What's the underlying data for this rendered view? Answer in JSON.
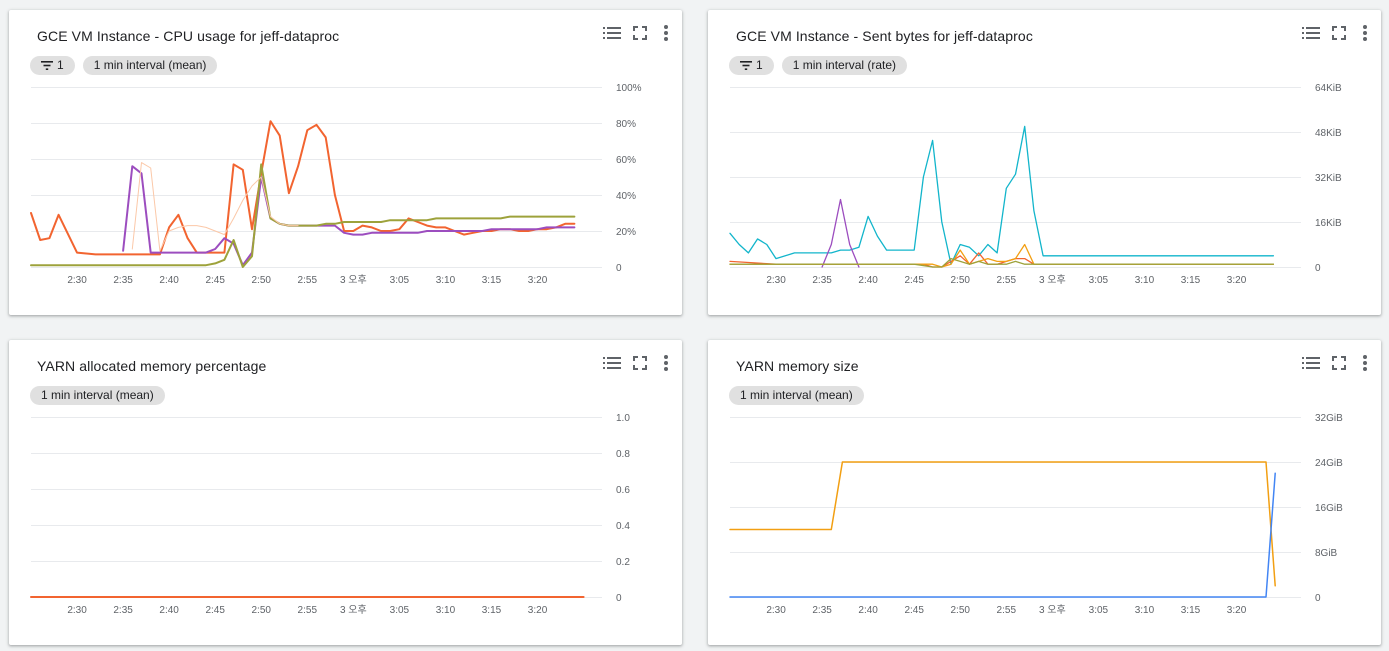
{
  "panels": [
    {
      "title": "GCE VM Instance - CPU usage for jeff-dataproc",
      "filter_count": "1",
      "interval": "1 min interval (mean)",
      "chart_data": {
        "type": "line",
        "title": "GCE VM Instance - CPU usage for jeff-dataproc",
        "x_ticks": [
          "2:30",
          "2:35",
          "2:40",
          "2:45",
          "2:50",
          "2:55",
          "3 오후",
          "3:05",
          "3:10",
          "3:15",
          "3:20"
        ],
        "x_tick_minutes": [
          30,
          35,
          40,
          45,
          50,
          55,
          60,
          65,
          70,
          75,
          80
        ],
        "xlim": [
          25,
          87
        ],
        "y_ticks": [
          "0",
          "20%",
          "40%",
          "60%",
          "80%",
          "100%"
        ],
        "y_tick_values": [
          0,
          20,
          40,
          60,
          80,
          100
        ],
        "ylim": [
          0,
          100
        ],
        "grid": true,
        "series": [
          {
            "color": "#f26430",
            "width": 2,
            "x": [
              25,
              26,
              27,
              28,
              30,
              32,
              34,
              36,
              38,
              39,
              40,
              41,
              42,
              43,
              44,
              45,
              46,
              47,
              48,
              49,
              50,
              51,
              52,
              53,
              54,
              55,
              56,
              57,
              58,
              59,
              60,
              61,
              62,
              63,
              64,
              65,
              66,
              67,
              68,
              69,
              70,
              71,
              72,
              73,
              74,
              75,
              76,
              77,
              78,
              79,
              80,
              81,
              82,
              83,
              84
            ],
            "y": [
              30,
              15,
              16,
              29,
              8,
              7,
              7,
              7,
              7,
              7,
              22,
              29,
              16,
              8,
              8,
              8,
              8,
              57,
              54,
              21,
              52,
              81,
              73,
              41,
              56,
              76,
              79,
              72,
              40,
              20,
              20,
              23,
              22,
              20,
              20,
              21,
              27,
              25,
              23,
              22,
              22,
              20,
              18,
              19,
              20,
              20,
              21,
              21,
              20,
              20,
              21,
              21,
              22,
              24,
              24
            ]
          },
          {
            "color": "#9c4dbf",
            "width": 2,
            "x": [
              35,
              36,
              37,
              38,
              39,
              40,
              41,
              42,
              43,
              44,
              45,
              46,
              47,
              48,
              49,
              50,
              51,
              52,
              53,
              54,
              55,
              56,
              57,
              58,
              59,
              60,
              61,
              62,
              63,
              64,
              65,
              66,
              67,
              68,
              69,
              70,
              71,
              72,
              73,
              74,
              75,
              76,
              77,
              78,
              79,
              80,
              81,
              82,
              83,
              84
            ],
            "y": [
              9,
              56,
              52,
              8,
              8,
              8,
              8,
              8,
              8,
              8,
              10,
              16,
              13,
              1,
              8,
              50,
              27,
              24,
              23,
              23,
              23,
              23,
              23,
              23,
              19,
              18,
              18,
              19,
              19,
              19,
              19,
              19,
              19,
              20,
              20,
              20,
              20,
              20,
              20,
              20,
              21,
              21,
              21,
              21,
              21,
              21,
              22,
              22,
              22,
              22
            ]
          },
          {
            "color": "#9da23b",
            "width": 2,
            "x": [
              25,
              30,
              35,
              40,
              44,
              45,
              46,
              47,
              48,
              49,
              50,
              51,
              52,
              53,
              54,
              55,
              56,
              57,
              58,
              59,
              60,
              61,
              62,
              63,
              64,
              65,
              66,
              67,
              68,
              69,
              70,
              71,
              72,
              73,
              74,
              75,
              76,
              77,
              78,
              79,
              80,
              81,
              82,
              83,
              84
            ],
            "y": [
              1,
              1,
              1,
              1,
              1,
              2,
              4,
              15,
              0,
              6,
              57,
              27,
              24,
              23,
              23,
              23,
              23,
              24,
              24,
              25,
              25,
              25,
              25,
              25,
              26,
              26,
              26,
              26,
              26,
              27,
              27,
              27,
              27,
              27,
              27,
              27,
              27,
              28,
              28,
              28,
              28,
              28,
              28,
              28,
              28
            ]
          },
          {
            "color": "#fbc8a8",
            "width": 1,
            "x": [
              36,
              37,
              38,
              39,
              40,
              41,
              42,
              43,
              44,
              45,
              46,
              47,
              48,
              49,
              50,
              51,
              52,
              53,
              54
            ],
            "y": [
              10,
              58,
              55,
              9,
              20,
              22,
              23,
              23,
              22,
              20,
              18,
              27,
              37,
              45,
              50,
              28,
              24,
              23,
              23
            ]
          }
        ]
      }
    },
    {
      "title": "GCE VM Instance - Sent bytes for jeff-dataproc",
      "filter_count": "1",
      "interval": "1 min interval (rate)",
      "chart_data": {
        "type": "line",
        "title": "GCE VM Instance - Sent bytes for jeff-dataproc",
        "x_ticks": [
          "2:30",
          "2:35",
          "2:40",
          "2:45",
          "2:50",
          "2:55",
          "3 오후",
          "3:05",
          "3:10",
          "3:15",
          "3:20"
        ],
        "x_tick_minutes": [
          30,
          35,
          40,
          45,
          50,
          55,
          60,
          65,
          70,
          75,
          80
        ],
        "xlim": [
          25,
          87
        ],
        "y_ticks": [
          "0",
          "16KiB",
          "32KiB",
          "48KiB",
          "64KiB"
        ],
        "y_tick_values": [
          0,
          16,
          32,
          48,
          64
        ],
        "ylim": [
          0,
          64
        ],
        "grid": true,
        "series": [
          {
            "color": "#12b5cb",
            "width": 1.3,
            "x": [
              25,
              26,
              27,
              28,
              29,
              30,
              31,
              32,
              33,
              34,
              35,
              36,
              37,
              38,
              39,
              40,
              41,
              42,
              43,
              44,
              45,
              46,
              47,
              48,
              49,
              50,
              51,
              52,
              53,
              54,
              55,
              56,
              57,
              58,
              59,
              60,
              61,
              62,
              63,
              64,
              65,
              66,
              67,
              68,
              69,
              70,
              71,
              72,
              73,
              74,
              75,
              76,
              77,
              78,
              79,
              80,
              81,
              82,
              83,
              84
            ],
            "y": [
              12,
              8,
              5,
              10,
              8,
              3,
              4,
              5,
              5,
              5,
              5,
              5,
              6,
              6,
              7,
              18,
              11,
              6,
              6,
              6,
              6,
              32,
              45,
              16,
              1,
              8,
              7,
              4,
              8,
              5,
              28,
              33,
              50,
              20,
              4,
              4,
              4,
              4,
              4,
              4,
              4,
              4,
              4,
              4,
              4,
              4,
              4,
              4,
              4,
              4,
              4,
              4,
              4,
              4,
              4,
              4,
              4,
              4,
              4,
              4
            ]
          },
          {
            "color": "#9c4dbf",
            "width": 1.3,
            "x": [
              35,
              36,
              37,
              38,
              39
            ],
            "y": [
              0,
              8,
              24,
              8,
              0
            ]
          },
          {
            "color": "#f26430",
            "width": 1.3,
            "x": [
              25,
              30,
              35,
              40,
              44,
              45,
              46,
              47,
              48,
              49,
              50,
              51,
              52,
              53,
              54,
              55,
              56,
              57,
              58,
              59,
              60,
              65,
              70,
              75,
              80,
              84
            ],
            "y": [
              2,
              1,
              1,
              1,
              1,
              1,
              1,
              0,
              0,
              2,
              4,
              1,
              5,
              1,
              1,
              2,
              3,
              3,
              1,
              1,
              1,
              1,
              1,
              1,
              1,
              1
            ]
          },
          {
            "color": "#f29f12",
            "width": 1.3,
            "x": [
              25,
              30,
              40,
              45,
              46,
              47,
              48,
              49,
              50,
              51,
              52,
              53,
              54,
              55,
              56,
              57,
              58,
              59,
              60,
              70,
              80,
              84
            ],
            "y": [
              1,
              1,
              1,
              1,
              1,
              1,
              0,
              1,
              6,
              1,
              2,
              3,
              2,
              2,
              3,
              8,
              1,
              1,
              1,
              1,
              1,
              1
            ]
          },
          {
            "color": "#9da23b",
            "width": 1.3,
            "x": [
              25,
              40,
              45,
              47,
              48,
              49,
              50,
              51,
              52,
              53,
              54,
              55,
              56,
              57,
              58,
              59,
              60,
              70,
              80,
              84
            ],
            "y": [
              1,
              1,
              1,
              0,
              0,
              3,
              2,
              1,
              2,
              1,
              1,
              1,
              2,
              1,
              1,
              1,
              1,
              1,
              1,
              1
            ]
          }
        ]
      }
    },
    {
      "title": "YARN allocated memory percentage",
      "interval": "1 min interval (mean)",
      "chart_data": {
        "type": "line",
        "title": "YARN allocated memory percentage",
        "x_ticks": [
          "2:30",
          "2:35",
          "2:40",
          "2:45",
          "2:50",
          "2:55",
          "3 오후",
          "3:05",
          "3:10",
          "3:15",
          "3:20"
        ],
        "x_tick_minutes": [
          30,
          35,
          40,
          45,
          50,
          55,
          60,
          65,
          70,
          75,
          80
        ],
        "xlim": [
          25,
          87
        ],
        "y_ticks": [
          "0",
          "0.2",
          "0.4",
          "0.6",
          "0.8",
          "1.0"
        ],
        "y_tick_values": [
          0,
          0.2,
          0.4,
          0.6,
          0.8,
          1.0
        ],
        "ylim": [
          0,
          1
        ],
        "grid": true,
        "series": [
          {
            "color": "#f26430",
            "width": 2,
            "x": [
              25,
              85
            ],
            "y": [
              0,
              0
            ]
          }
        ]
      }
    },
    {
      "title": "YARN memory size",
      "interval": "1 min interval (mean)",
      "chart_data": {
        "type": "line",
        "title": "YARN memory size",
        "x_ticks": [
          "2:30",
          "2:35",
          "2:40",
          "2:45",
          "2:50",
          "2:55",
          "3 오후",
          "3:05",
          "3:10",
          "3:15",
          "3:20"
        ],
        "x_tick_minutes": [
          30,
          35,
          40,
          45,
          50,
          55,
          60,
          65,
          70,
          75,
          80
        ],
        "xlim": [
          25,
          87
        ],
        "y_ticks": [
          "0",
          "8GiB",
          "16GiB",
          "24GiB",
          "32GiB"
        ],
        "y_tick_values": [
          0,
          8,
          16,
          24,
          32
        ],
        "ylim": [
          0,
          32
        ],
        "grid": true,
        "series": [
          {
            "color": "#f29f12",
            "width": 1.5,
            "x": [
              25,
              36,
              37.2,
              83.2,
              84.2
            ],
            "y": [
              12,
              12,
              24,
              24,
              2
            ]
          },
          {
            "color": "#4285f4",
            "width": 1.5,
            "x": [
              25,
              83.2,
              84.2
            ],
            "y": [
              0,
              0,
              22
            ]
          }
        ]
      }
    }
  ]
}
